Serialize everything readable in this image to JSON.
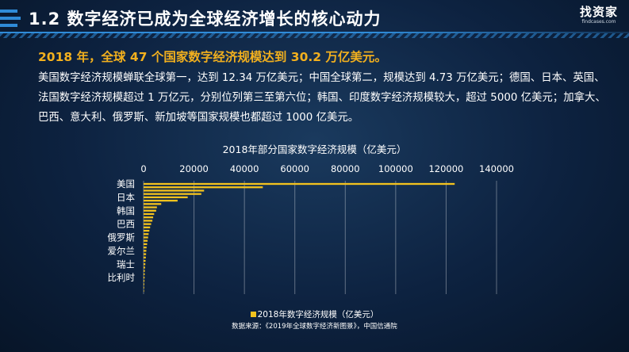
{
  "header": {
    "title": "1.2 数字经济已成为全球经济增长的核心动力",
    "logo_main": "找资家",
    "logo_sub": "findcases.com"
  },
  "headline": "2018 年，全球 47 个国家数字经济规模达到 30.2 万亿美元。",
  "body_text": "美国数字经济规模蝉联全球第一，达到 12.34 万亿美元；中国全球第二，规模达到 4.73 万亿美元；德国、日本、英国、法国数字经济规模超过 1 万亿元，分别位列第三至第六位；韩国、印度数字经济规模较大，超过 5000 亿美元；加拿大、巴西、意大利、俄罗斯、新加坡等国家规模也都超过 1000 亿美元。",
  "colors": {
    "bar": "#f2c21e",
    "headline": "#f2b01e",
    "accent": "#2f8bd8",
    "background": "#0d2240"
  },
  "chart_data": {
    "type": "bar",
    "orientation": "horizontal",
    "title": "2018年部分国家数字经济规模（亿美元）",
    "xlim": [
      0,
      140000
    ],
    "x_ticks": [
      "0",
      "20000",
      "40000",
      "60000",
      "80000",
      "100000",
      "120000",
      "140000"
    ],
    "grid": true,
    "legend_position": "bottom",
    "y_tick_labels": [
      "美国",
      "日本",
      "韩国",
      "巴西",
      "俄罗斯",
      "爱尔兰",
      "瑞士",
      "比利时"
    ],
    "series": [
      {
        "name": "2018年数字经济规模（亿美元）",
        "values": [
          123400,
          47300,
          24000,
          22900,
          17500,
          13500,
          7000,
          5300,
          5000,
          4200,
          3800,
          3500,
          3000,
          2600,
          2300,
          2000,
          1800,
          1600,
          1400,
          1200,
          1100,
          1000,
          900,
          800,
          700,
          600,
          500,
          450,
          400,
          350,
          300,
          250,
          200
        ]
      }
    ],
    "source": "数据来源：《2019年全球数字经济新图景》，中国信通院"
  }
}
